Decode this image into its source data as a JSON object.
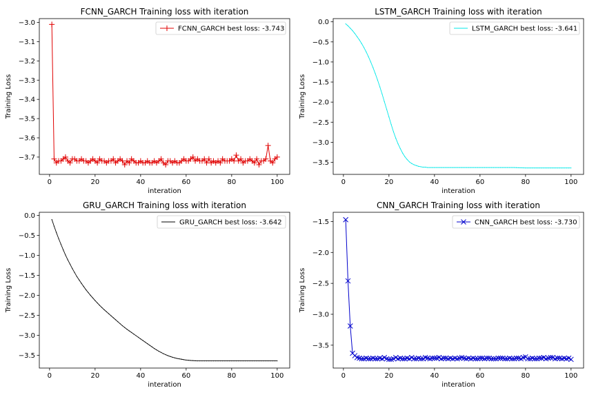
{
  "chart_data": [
    {
      "type": "line",
      "title": "FCNN_GARCH Training loss with iteration",
      "xlabel": "interation",
      "ylabel": "Training Loss",
      "xlim": [
        -4.5,
        105.5
      ],
      "ylim": [
        -3.79,
        -2.98
      ],
      "xticks": [
        0,
        20,
        40,
        60,
        80,
        100
      ],
      "yticks": [
        -3.7,
        -3.6,
        -3.5,
        -3.4,
        -3.3,
        -3.2,
        -3.1,
        -3.0
      ],
      "legend_position": "top-right",
      "marker": "plus",
      "series": [
        {
          "name": "FCNN_GARCH best loss: -3.743",
          "color": "#e00000",
          "x": [
            1,
            2,
            3,
            4,
            5,
            6,
            7,
            8,
            9,
            10,
            11,
            12,
            13,
            14,
            15,
            16,
            17,
            18,
            19,
            20,
            21,
            22,
            23,
            24,
            25,
            26,
            27,
            28,
            29,
            30,
            31,
            32,
            33,
            34,
            35,
            36,
            37,
            38,
            39,
            40,
            41,
            42,
            43,
            44,
            45,
            46,
            47,
            48,
            49,
            50,
            51,
            52,
            53,
            54,
            55,
            56,
            57,
            58,
            59,
            60,
            61,
            62,
            63,
            64,
            65,
            66,
            67,
            68,
            69,
            70,
            71,
            72,
            73,
            74,
            75,
            76,
            77,
            78,
            79,
            80,
            81,
            82,
            83,
            84,
            85,
            86,
            87,
            88,
            89,
            90,
            91,
            92,
            93,
            94,
            95,
            96,
            97,
            98,
            99,
            100
          ],
          "values": [
            -3.01,
            -3.71,
            -3.73,
            -3.72,
            -3.72,
            -3.71,
            -3.7,
            -3.72,
            -3.73,
            -3.71,
            -3.71,
            -3.72,
            -3.72,
            -3.71,
            -3.72,
            -3.72,
            -3.73,
            -3.72,
            -3.71,
            -3.72,
            -3.73,
            -3.71,
            -3.72,
            -3.72,
            -3.73,
            -3.72,
            -3.72,
            -3.71,
            -3.73,
            -3.72,
            -3.71,
            -3.72,
            -3.74,
            -3.72,
            -3.73,
            -3.71,
            -3.72,
            -3.73,
            -3.73,
            -3.72,
            -3.73,
            -3.73,
            -3.72,
            -3.73,
            -3.73,
            -3.72,
            -3.73,
            -3.72,
            -3.71,
            -3.73,
            -3.74,
            -3.72,
            -3.72,
            -3.73,
            -3.72,
            -3.73,
            -3.73,
            -3.72,
            -3.71,
            -3.72,
            -3.72,
            -3.71,
            -3.7,
            -3.72,
            -3.71,
            -3.72,
            -3.72,
            -3.71,
            -3.73,
            -3.71,
            -3.73,
            -3.72,
            -3.73,
            -3.72,
            -3.73,
            -3.71,
            -3.72,
            -3.72,
            -3.72,
            -3.71,
            -3.72,
            -3.69,
            -3.72,
            -3.71,
            -3.73,
            -3.72,
            -3.72,
            -3.71,
            -3.72,
            -3.73,
            -3.71,
            -3.74,
            -3.72,
            -3.72,
            -3.71,
            -3.64,
            -3.72,
            -3.73,
            -3.71,
            -3.7
          ]
        }
      ]
    },
    {
      "type": "line",
      "title": "LSTM_GARCH Training loss with iteration",
      "xlabel": "interation",
      "ylabel": "Training Loss",
      "xlim": [
        -4.5,
        105.5
      ],
      "ylim": [
        -3.8,
        0.08
      ],
      "xticks": [
        0,
        20,
        40,
        60,
        80,
        100
      ],
      "yticks": [
        -3.5,
        -3.0,
        -2.5,
        -2.0,
        -1.5,
        -1.0,
        -0.5,
        0.0
      ],
      "legend_position": "top-right",
      "marker": "point",
      "series": [
        {
          "name": "LSTM_GARCH best loss: -3.641",
          "color": "#00e8e8",
          "x": [
            1,
            2,
            3,
            4,
            5,
            6,
            7,
            8,
            9,
            10,
            11,
            12,
            13,
            14,
            15,
            16,
            17,
            18,
            19,
            20,
            21,
            22,
            23,
            24,
            25,
            26,
            27,
            28,
            29,
            30,
            31,
            32,
            33,
            34,
            35,
            36,
            37,
            38,
            39,
            40,
            42,
            45,
            50,
            55,
            60,
            65,
            70,
            75,
            80,
            85,
            90,
            95,
            100
          ],
          "values": [
            -0.05,
            -0.1,
            -0.16,
            -0.22,
            -0.29,
            -0.37,
            -0.45,
            -0.54,
            -0.64,
            -0.75,
            -0.87,
            -1.0,
            -1.14,
            -1.29,
            -1.45,
            -1.62,
            -1.8,
            -1.99,
            -2.18,
            -2.37,
            -2.56,
            -2.74,
            -2.9,
            -3.04,
            -3.16,
            -3.27,
            -3.36,
            -3.43,
            -3.49,
            -3.53,
            -3.56,
            -3.58,
            -3.6,
            -3.61,
            -3.62,
            -3.62,
            -3.63,
            -3.63,
            -3.63,
            -3.63,
            -3.63,
            -3.63,
            -3.63,
            -3.63,
            -3.63,
            -3.63,
            -3.63,
            -3.63,
            -3.64,
            -3.64,
            -3.64,
            -3.64,
            -3.64
          ]
        }
      ]
    },
    {
      "type": "line",
      "title": "GRU_GARCH Training loss with iteration",
      "xlabel": "interation",
      "ylabel": "Training Loss",
      "xlim": [
        -4.5,
        105.5
      ],
      "ylim": [
        -3.82,
        0.08
      ],
      "xticks": [
        0,
        20,
        40,
        60,
        80,
        100
      ],
      "yticks": [
        -3.5,
        -3.0,
        -2.5,
        -2.0,
        -1.5,
        -1.0,
        -0.5,
        0.0
      ],
      "legend_position": "top-right",
      "marker": "point",
      "series": [
        {
          "name": "GRU_GARCH best loss: -3.642",
          "color": "#000000",
          "x": [
            1,
            2,
            3,
            4,
            5,
            6,
            7,
            8,
            10,
            12,
            14,
            16,
            18,
            20,
            22,
            24,
            26,
            28,
            30,
            32,
            34,
            36,
            38,
            40,
            42,
            44,
            46,
            48,
            50,
            52,
            54,
            56,
            58,
            60,
            62,
            65,
            70,
            75,
            80,
            85,
            90,
            95,
            100
          ],
          "values": [
            -0.1,
            -0.27,
            -0.43,
            -0.58,
            -0.72,
            -0.86,
            -0.99,
            -1.11,
            -1.33,
            -1.53,
            -1.7,
            -1.86,
            -2.0,
            -2.13,
            -2.25,
            -2.36,
            -2.46,
            -2.56,
            -2.66,
            -2.76,
            -2.85,
            -2.93,
            -3.01,
            -3.09,
            -3.17,
            -3.25,
            -3.33,
            -3.4,
            -3.46,
            -3.51,
            -3.55,
            -3.58,
            -3.6,
            -3.62,
            -3.63,
            -3.64,
            -3.64,
            -3.64,
            -3.64,
            -3.64,
            -3.64,
            -3.64,
            -3.64
          ]
        }
      ]
    },
    {
      "type": "line",
      "title": "CNN_GARCH Training loss with iteration",
      "xlabel": "interation",
      "ylabel": "Training Loss",
      "xlim": [
        -4.5,
        105.5
      ],
      "ylim": [
        -3.87,
        -1.35
      ],
      "xticks": [
        0,
        20,
        40,
        60,
        80,
        100
      ],
      "yticks": [
        -3.5,
        -3.0,
        -2.5,
        -2.0,
        -1.5
      ],
      "legend_position": "top-right",
      "marker": "x",
      "series": [
        {
          "name": "CNN_GARCH best loss: -3.730",
          "color": "#0000cc",
          "x": [
            1,
            2,
            3,
            4,
            5,
            6,
            7,
            8,
            9,
            10,
            11,
            12,
            13,
            14,
            15,
            16,
            17,
            18,
            19,
            20,
            21,
            22,
            23,
            24,
            25,
            26,
            27,
            28,
            29,
            30,
            31,
            32,
            33,
            34,
            35,
            36,
            37,
            38,
            39,
            40,
            41,
            42,
            43,
            44,
            45,
            46,
            47,
            48,
            49,
            50,
            51,
            52,
            53,
            54,
            55,
            56,
            57,
            58,
            59,
            60,
            61,
            62,
            63,
            64,
            65,
            66,
            67,
            68,
            69,
            70,
            71,
            72,
            73,
            74,
            75,
            76,
            77,
            78,
            79,
            80,
            81,
            82,
            83,
            84,
            85,
            86,
            87,
            88,
            89,
            90,
            91,
            92,
            93,
            94,
            95,
            96,
            97,
            98,
            99,
            100
          ],
          "values": [
            -1.47,
            -2.46,
            -3.19,
            -3.63,
            -3.67,
            -3.7,
            -3.71,
            -3.72,
            -3.72,
            -3.71,
            -3.72,
            -3.72,
            -3.71,
            -3.72,
            -3.72,
            -3.71,
            -3.72,
            -3.7,
            -3.72,
            -3.73,
            -3.73,
            -3.72,
            -3.7,
            -3.72,
            -3.71,
            -3.72,
            -3.72,
            -3.71,
            -3.72,
            -3.7,
            -3.72,
            -3.72,
            -3.71,
            -3.72,
            -3.72,
            -3.7,
            -3.71,
            -3.72,
            -3.71,
            -3.71,
            -3.71,
            -3.7,
            -3.72,
            -3.71,
            -3.71,
            -3.72,
            -3.71,
            -3.72,
            -3.71,
            -3.72,
            -3.71,
            -3.7,
            -3.71,
            -3.72,
            -3.71,
            -3.72,
            -3.71,
            -3.72,
            -3.72,
            -3.71,
            -3.71,
            -3.72,
            -3.71,
            -3.71,
            -3.72,
            -3.72,
            -3.72,
            -3.71,
            -3.71,
            -3.71,
            -3.72,
            -3.72,
            -3.71,
            -3.72,
            -3.72,
            -3.71,
            -3.71,
            -3.72,
            -3.7,
            -3.69,
            -3.72,
            -3.72,
            -3.71,
            -3.72,
            -3.72,
            -3.71,
            -3.71,
            -3.7,
            -3.72,
            -3.71,
            -3.7,
            -3.7,
            -3.72,
            -3.71,
            -3.71,
            -3.72,
            -3.71,
            -3.72,
            -3.71,
            -3.73
          ]
        }
      ]
    }
  ]
}
